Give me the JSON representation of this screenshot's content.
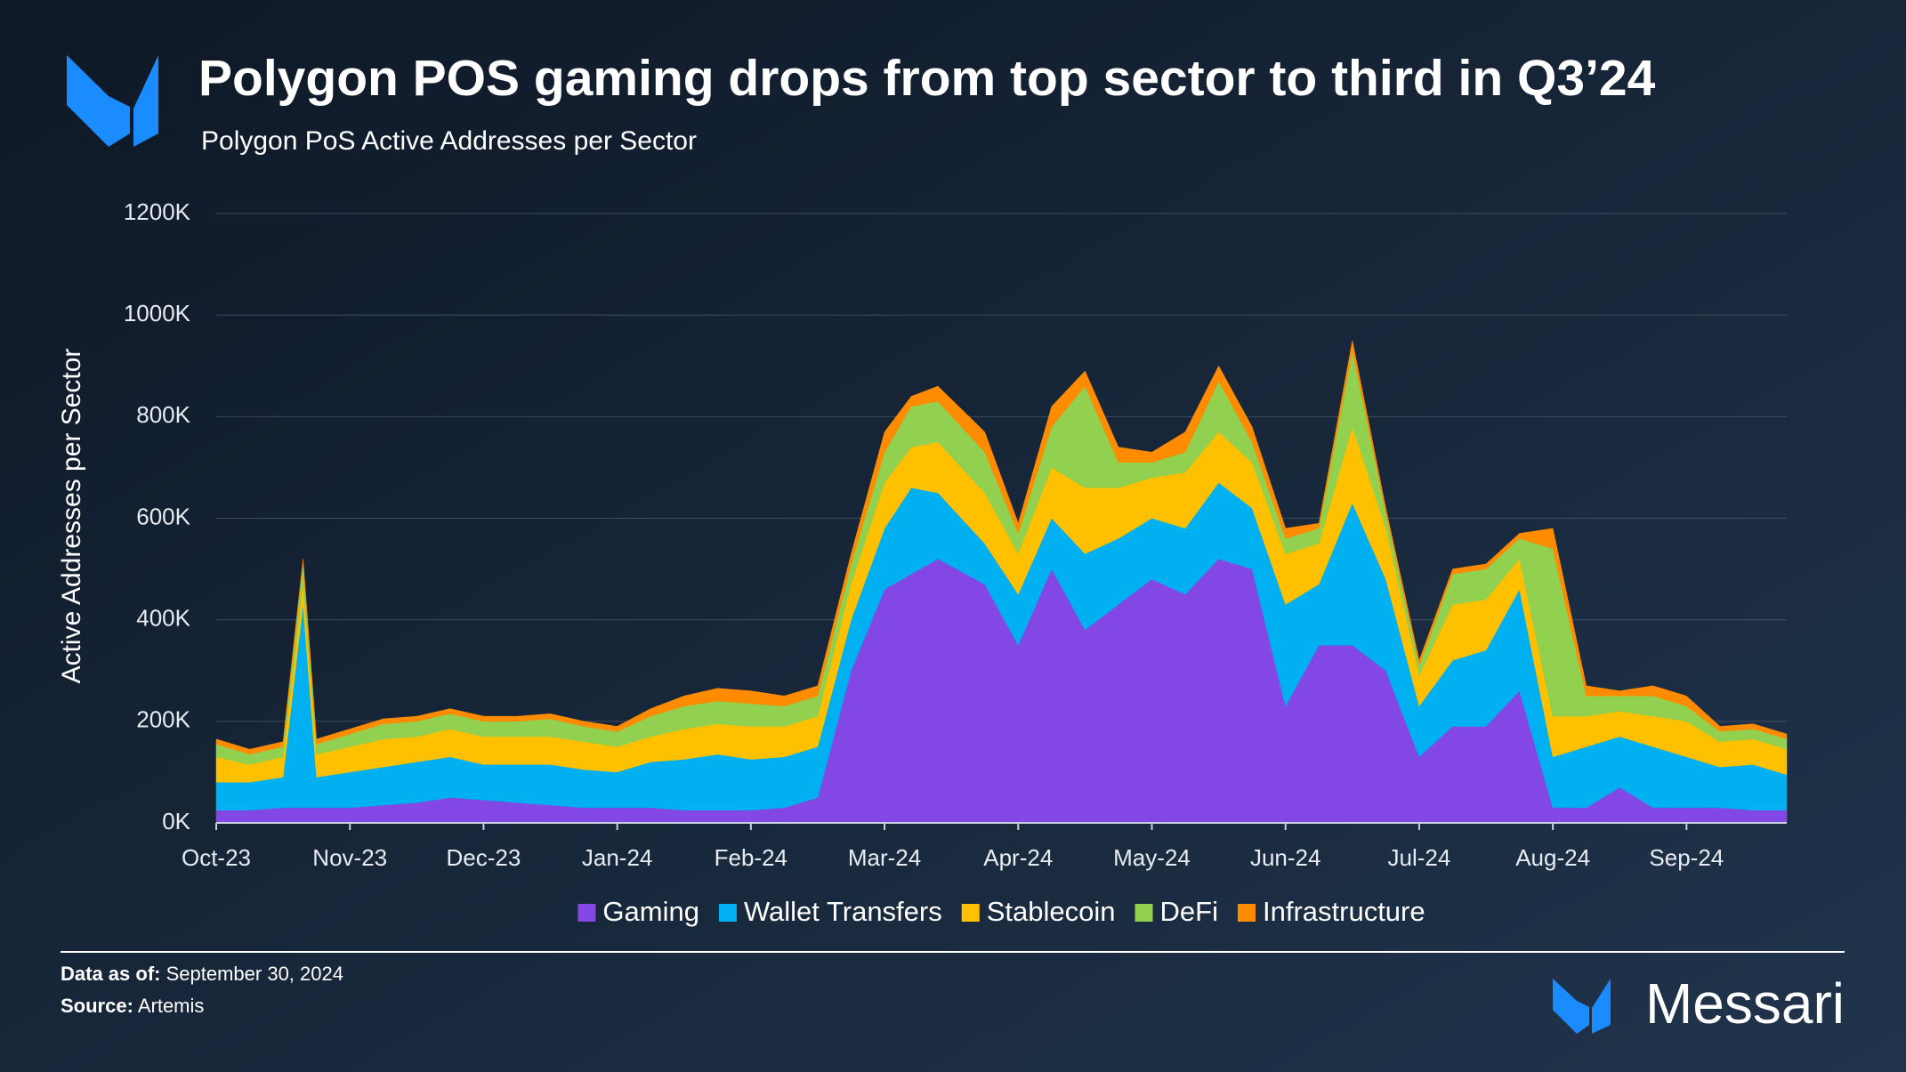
{
  "chart_data": {
    "type": "stacked_area",
    "title": "Polygon POS gaming drops from top sector to third in Q3’24",
    "subtitle": "Polygon PoS Active Addresses per Sector",
    "y_label": "Active Addresses per Sector",
    "x": [
      0,
      0.25,
      0.5,
      0.65,
      0.75,
      1,
      1.25,
      1.5,
      1.75,
      2,
      2.25,
      2.5,
      2.75,
      3,
      3.25,
      3.5,
      3.75,
      4,
      4.25,
      4.5,
      4.75,
      5,
      5.2,
      5.4,
      5.75,
      6,
      6.25,
      6.5,
      6.75,
      7,
      7.25,
      7.5,
      7.75,
      8,
      8.25,
      8.5,
      8.75,
      9,
      9.25,
      9.5,
      9.75,
      10,
      10.25,
      10.5,
      10.75,
      11,
      11.25,
      11.5,
      11.75
    ],
    "xlim": [
      0,
      11.75
    ],
    "xticks": [
      {
        "value": 0,
        "label": "Oct-23"
      },
      {
        "value": 1,
        "label": "Nov-23"
      },
      {
        "value": 2,
        "label": "Dec-23"
      },
      {
        "value": 3,
        "label": "Jan-24"
      },
      {
        "value": 4,
        "label": "Feb-24"
      },
      {
        "value": 5,
        "label": "Mar-24"
      },
      {
        "value": 6,
        "label": "Apr-24"
      },
      {
        "value": 7,
        "label": "May-24"
      },
      {
        "value": 8,
        "label": "Jun-24"
      },
      {
        "value": 9,
        "label": "Jul-24"
      },
      {
        "value": 10,
        "label": "Aug-24"
      },
      {
        "value": 11,
        "label": "Sep-24"
      }
    ],
    "ylim": [
      0,
      1200000
    ],
    "yticks": [
      {
        "value": 0,
        "label": "0K"
      },
      {
        "value": 200000,
        "label": "200K"
      },
      {
        "value": 400000,
        "label": "400K"
      },
      {
        "value": 600000,
        "label": "600K"
      },
      {
        "value": 800000,
        "label": "800K"
      },
      {
        "value": 1000000,
        "label": "1000K"
      },
      {
        "value": 1200000,
        "label": "1200K"
      }
    ],
    "grid": true,
    "series": [
      {
        "name": "Gaming",
        "color": "#8247e5",
        "values": [
          25000,
          25000,
          30000,
          30000,
          30000,
          30000,
          35000,
          40000,
          50000,
          45000,
          40000,
          35000,
          30000,
          30000,
          30000,
          25000,
          25000,
          25000,
          30000,
          50000,
          300000,
          460000,
          490000,
          520000,
          470000,
          350000,
          500000,
          380000,
          430000,
          480000,
          450000,
          520000,
          500000,
          230000,
          350000,
          350000,
          300000,
          130000,
          190000,
          190000,
          260000,
          30000,
          30000,
          70000,
          30000,
          30000,
          30000,
          25000,
          25000
        ]
      },
      {
        "name": "Wallet Transfers",
        "color": "#00b0f0",
        "values": [
          55000,
          55000,
          60000,
          400000,
          60000,
          70000,
          75000,
          80000,
          80000,
          70000,
          75000,
          80000,
          75000,
          70000,
          90000,
          100000,
          110000,
          100000,
          100000,
          100000,
          100000,
          120000,
          170000,
          130000,
          80000,
          100000,
          100000,
          150000,
          130000,
          120000,
          130000,
          150000,
          120000,
          200000,
          120000,
          280000,
          180000,
          100000,
          130000,
          150000,
          200000,
          100000,
          120000,
          100000,
          120000,
          100000,
          80000,
          90000,
          70000
        ]
      },
      {
        "name": "Stablecoin",
        "color": "#ffc000",
        "values": [
          50000,
          35000,
          40000,
          40000,
          45000,
          50000,
          55000,
          50000,
          55000,
          55000,
          55000,
          55000,
          55000,
          50000,
          50000,
          60000,
          60000,
          65000,
          60000,
          60000,
          70000,
          90000,
          80000,
          100000,
          100000,
          80000,
          100000,
          130000,
          100000,
          80000,
          110000,
          100000,
          90000,
          100000,
          80000,
          150000,
          100000,
          60000,
          110000,
          100000,
          60000,
          80000,
          60000,
          50000,
          60000,
          70000,
          50000,
          50000,
          50000
        ]
      },
      {
        "name": "DeFi",
        "color": "#92d050",
        "values": [
          25000,
          20000,
          20000,
          40000,
          20000,
          25000,
          30000,
          30000,
          30000,
          30000,
          30000,
          35000,
          30000,
          30000,
          40000,
          45000,
          45000,
          45000,
          40000,
          40000,
          40000,
          60000,
          80000,
          80000,
          80000,
          40000,
          80000,
          200000,
          50000,
          30000,
          40000,
          100000,
          40000,
          30000,
          30000,
          150000,
          30000,
          20000,
          60000,
          60000,
          40000,
          330000,
          40000,
          30000,
          40000,
          30000,
          20000,
          20000,
          20000
        ]
      },
      {
        "name": "Infrastructure",
        "color": "#ff8c00",
        "values": [
          10000,
          10000,
          10000,
          10000,
          10000,
          10000,
          10000,
          10000,
          10000,
          10000,
          10000,
          10000,
          10000,
          10000,
          15000,
          20000,
          25000,
          25000,
          20000,
          20000,
          20000,
          40000,
          20000,
          30000,
          40000,
          20000,
          40000,
          30000,
          30000,
          20000,
          40000,
          30000,
          30000,
          20000,
          10000,
          20000,
          10000,
          10000,
          10000,
          10000,
          10000,
          40000,
          20000,
          10000,
          20000,
          20000,
          10000,
          10000,
          10000
        ]
      }
    ]
  },
  "footer": {
    "data_as_of_label": "Data as of:",
    "data_as_of": "September 30, 2024",
    "source_label": "Source:",
    "source": "Artemis",
    "brand": "Messari"
  }
}
